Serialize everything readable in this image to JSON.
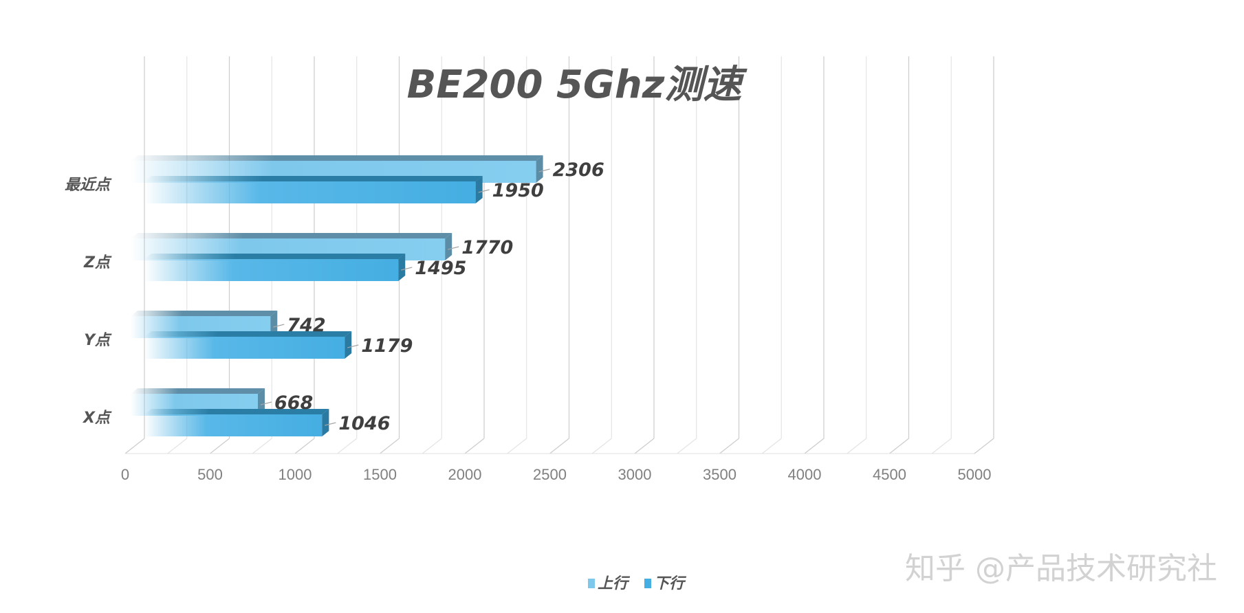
{
  "chart_data": {
    "type": "bar",
    "orientation": "horizontal",
    "style": "3d-clustered",
    "title": "BE200 5Ghz测速",
    "categories": [
      "X点",
      "Y点",
      "Z点",
      "最近点"
    ],
    "series": [
      {
        "name": "上行",
        "values": [
          668,
          742,
          1770,
          2306
        ],
        "color": "#7ec8ec"
      },
      {
        "name": "下行",
        "values": [
          1046,
          1179,
          1495,
          1950
        ],
        "color": "#45aee2"
      }
    ],
    "xlim": [
      0,
      5000
    ],
    "xticks": [
      0,
      500,
      1000,
      1500,
      2000,
      2500,
      3000,
      3500,
      4000,
      4500,
      5000
    ],
    "grid": true,
    "legend_position": "bottom"
  },
  "watermark": "知乎 @产品技术研究社"
}
